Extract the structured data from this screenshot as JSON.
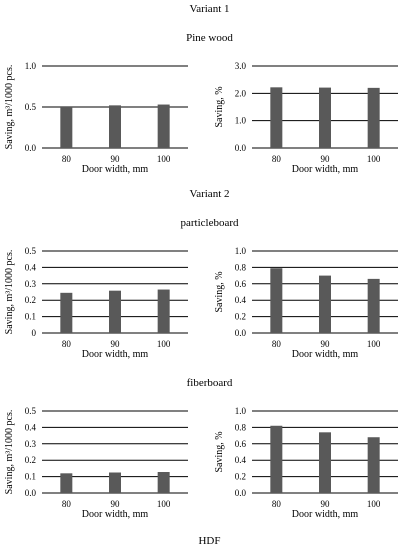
{
  "headings": {
    "variant1": "Variant 1",
    "pine": "Pine wood",
    "variant2": "Variant 2",
    "particle": "particleboard",
    "fiber": "fiberboard",
    "hdf": "HDF"
  },
  "colors": {
    "bar": "#595959",
    "grid": "#000000"
  },
  "chart_data": [
    {
      "type": "bar",
      "categories": [
        "80",
        "90",
        "100"
      ],
      "values": [
        0.5,
        0.52,
        0.53
      ],
      "xlabel": "Door width, mm",
      "ylabel": "Saving, m³/1000 pcs.",
      "ylim": [
        0,
        1.0
      ],
      "yticks": [
        0.0,
        0.5,
        1.0
      ],
      "ytick_labels": [
        "0.0",
        "0.5",
        "1.0"
      ],
      "grid": true
    },
    {
      "type": "bar",
      "categories": [
        "80",
        "90",
        "100"
      ],
      "values": [
        2.22,
        2.21,
        2.2
      ],
      "xlabel": "Door width, mm",
      "ylabel": "Saving, %",
      "ylim": [
        0,
        3.0
      ],
      "yticks": [
        0.0,
        1.0,
        2.0,
        3.0
      ],
      "ytick_labels": [
        "0.0",
        "1.0",
        "2.0",
        "3.0"
      ],
      "grid": true
    },
    {
      "type": "bar",
      "categories": [
        "80",
        "90",
        "100"
      ],
      "values": [
        0.245,
        0.258,
        0.265
      ],
      "xlabel": "Door width, mm",
      "ylabel": "Saving, m³/1000 pcs.",
      "ylim": [
        0,
        0.5
      ],
      "yticks": [
        0.0,
        0.1,
        0.2,
        0.3,
        0.4,
        0.5
      ],
      "ytick_labels": [
        "0",
        "0.1",
        "0.2",
        "0.3",
        "0.4",
        "0.5"
      ],
      "grid": true
    },
    {
      "type": "bar",
      "categories": [
        "80",
        "90",
        "100"
      ],
      "values": [
        0.79,
        0.7,
        0.66
      ],
      "xlabel": "Door width, mm",
      "ylabel": "Saving, %",
      "ylim": [
        0,
        1.0
      ],
      "yticks": [
        0.0,
        0.2,
        0.4,
        0.6,
        0.8,
        1.0
      ],
      "ytick_labels": [
        "0.0",
        "0.2",
        "0.4",
        "0.6",
        "0.8",
        "1.0"
      ],
      "grid": true
    },
    {
      "type": "bar",
      "categories": [
        "80",
        "90",
        "100"
      ],
      "values": [
        0.12,
        0.125,
        0.128
      ],
      "xlabel": "Door width, mm",
      "ylabel": "Saving, m³/1000 pcs.",
      "ylim": [
        0,
        0.5
      ],
      "yticks": [
        0.0,
        0.1,
        0.2,
        0.3,
        0.4,
        0.5
      ],
      "ytick_labels": [
        "0.0",
        "0.1",
        "0.2",
        "0.3",
        "0.4",
        "0.5"
      ],
      "grid": true
    },
    {
      "type": "bar",
      "categories": [
        "80",
        "90",
        "100"
      ],
      "values": [
        0.82,
        0.74,
        0.68
      ],
      "xlabel": "Door width, mm",
      "ylabel": "Saving, %",
      "ylim": [
        0,
        1.0
      ],
      "yticks": [
        0.0,
        0.2,
        0.4,
        0.6,
        0.8,
        1.0
      ],
      "ytick_labels": [
        "0.0",
        "0.2",
        "0.4",
        "0.6",
        "0.8",
        "1.0"
      ],
      "grid": true
    }
  ]
}
